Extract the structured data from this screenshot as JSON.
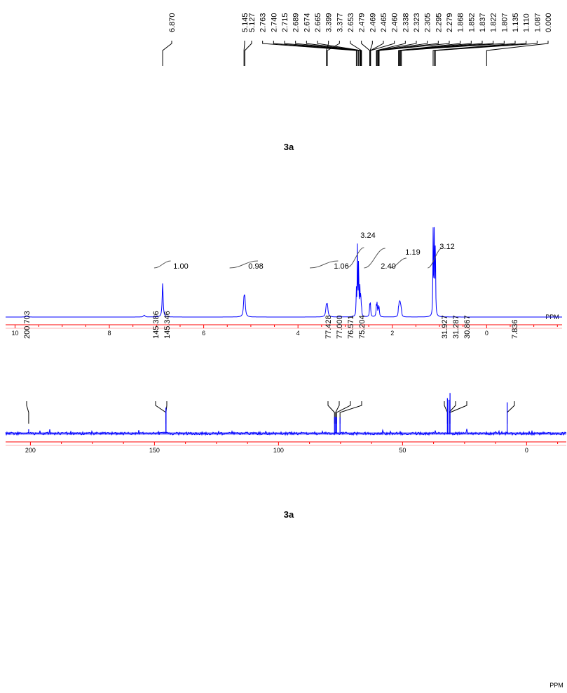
{
  "chart_data": [
    {
      "type": "line",
      "spectrum": "1H NMR",
      "title": "3a",
      "xlabel": "PPM",
      "xlim": [
        10.2,
        -1.6
      ],
      "xticks": [
        10,
        8,
        6,
        4,
        2,
        0
      ],
      "tick_labels": [
        "10",
        "8",
        "6",
        "4",
        "2",
        "0"
      ],
      "peak_labels": [
        "6.870",
        "5.145",
        "5.127",
        "2.763",
        "2.740",
        "2.715",
        "2.689",
        "2.674",
        "2.665",
        "3.399",
        "3.377",
        "2.653",
        "2.479",
        "2.469",
        "2.465",
        "2.460",
        "2.338",
        "2.323",
        "2.305",
        "2.295",
        "2.279",
        "1.868",
        "1.852",
        "1.837",
        "1.822",
        "1.807",
        "1.135",
        "1.110",
        "1.087",
        "0.000"
      ],
      "peaks": [
        {
          "x": 9.75,
          "h": 0.01,
          "w": 0.02
        },
        {
          "x": 7.26,
          "h": 0.02,
          "w": 0.02
        },
        {
          "x": 6.87,
          "h": 0.37,
          "w": 0.012
        },
        {
          "x": 5.145,
          "h": 0.17,
          "w": 0.014
        },
        {
          "x": 5.127,
          "h": 0.17,
          "w": 0.014
        },
        {
          "x": 3.399,
          "h": 0.11,
          "w": 0.015
        },
        {
          "x": 3.377,
          "h": 0.11,
          "w": 0.015
        },
        {
          "x": 2.763,
          "h": 0.28,
          "w": 0.006
        },
        {
          "x": 2.74,
          "h": 0.75,
          "w": 0.006
        },
        {
          "x": 2.715,
          "h": 0.62,
          "w": 0.006
        },
        {
          "x": 2.689,
          "h": 0.3,
          "w": 0.006
        },
        {
          "x": 2.674,
          "h": 0.16,
          "w": 0.006
        },
        {
          "x": 2.665,
          "h": 0.12,
          "w": 0.006
        },
        {
          "x": 2.653,
          "h": 0.08,
          "w": 0.006
        },
        {
          "x": 2.479,
          "h": 0.11,
          "w": 0.008
        },
        {
          "x": 2.465,
          "h": 0.13,
          "w": 0.008
        },
        {
          "x": 2.338,
          "h": 0.11,
          "w": 0.008
        },
        {
          "x": 2.323,
          "h": 0.13,
          "w": 0.008
        },
        {
          "x": 2.295,
          "h": 0.1,
          "w": 0.008
        },
        {
          "x": 2.279,
          "h": 0.08,
          "w": 0.008
        },
        {
          "x": 1.868,
          "h": 0.09,
          "w": 0.008
        },
        {
          "x": 1.852,
          "h": 0.13,
          "w": 0.008
        },
        {
          "x": 1.837,
          "h": 0.13,
          "w": 0.008
        },
        {
          "x": 1.822,
          "h": 0.1,
          "w": 0.008
        },
        {
          "x": 1.807,
          "h": 0.06,
          "w": 0.008
        },
        {
          "x": 1.135,
          "h": 0.92,
          "w": 0.006
        },
        {
          "x": 1.11,
          "h": 1.0,
          "w": 0.006
        },
        {
          "x": 1.087,
          "h": 0.85,
          "w": 0.006
        }
      ],
      "integrals": [
        {
          "from": 7.05,
          "to": 6.7,
          "label": "1.00"
        },
        {
          "from": 5.45,
          "to": 4.85,
          "label": "0.98"
        },
        {
          "from": 3.75,
          "to": 3.15,
          "label": "1.06"
        },
        {
          "from": 2.95,
          "to": 2.6,
          "label": "3.24"
        },
        {
          "from": 2.6,
          "to": 2.15,
          "label": "2.40"
        },
        {
          "from": 2.05,
          "to": 1.7,
          "label": "1.19"
        },
        {
          "from": 1.25,
          "to": 0.95,
          "label": "3.12"
        }
      ]
    },
    {
      "type": "line",
      "spectrum": "13C NMR",
      "title": "3a",
      "xlabel": "PPM",
      "xlim": [
        210.0,
        -16.0
      ],
      "xticks": [
        200,
        150,
        100,
        50,
        0
      ],
      "tick_labels": [
        "200",
        "150",
        "100",
        "50",
        "0"
      ],
      "peak_labels": [
        "200.703",
        "145.386",
        "145.346",
        "77.428",
        "77.000",
        "76.571",
        "75.204",
        "31.927",
        "31.287",
        "30.867",
        "7.836"
      ],
      "peaks": [
        {
          "x": 200.703,
          "h": 0.08
        },
        {
          "x": 145.386,
          "h": 0.5
        },
        {
          "x": 145.346,
          "h": 0.48
        },
        {
          "x": 77.428,
          "h": 0.32
        },
        {
          "x": 77.0,
          "h": 0.32
        },
        {
          "x": 76.571,
          "h": 0.31
        },
        {
          "x": 75.204,
          "h": 0.31
        },
        {
          "x": 31.927,
          "h": 0.68
        },
        {
          "x": 31.287,
          "h": 0.65
        },
        {
          "x": 30.867,
          "h": 0.78
        },
        {
          "x": 7.836,
          "h": 0.6
        }
      ]
    }
  ],
  "colors": {
    "trace": "#0000ff",
    "axis": "#ff0000",
    "text": "#000000"
  }
}
